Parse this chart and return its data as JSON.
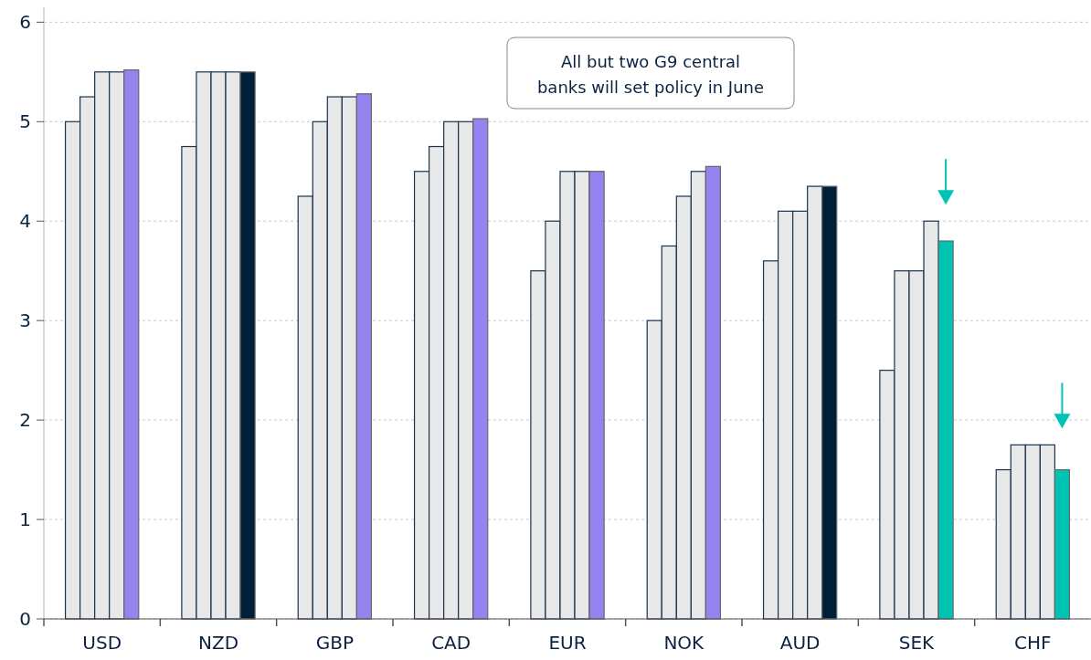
{
  "chart_data": {
    "type": "bar",
    "categories": [
      "USD",
      "NZD",
      "GBP",
      "CAD",
      "EUR",
      "NOK",
      "AUD",
      "SEK",
      "CHF"
    ],
    "series": [
      {
        "color": "#e8e8e8",
        "values": [
          5,
          4.75,
          4.25,
          4.5,
          3.5,
          3,
          3.6,
          2.5,
          1.5
        ]
      },
      {
        "color": "#e8e8e8",
        "values": [
          5.25,
          5.5,
          5,
          4.75,
          4,
          3.75,
          4.1,
          3.5,
          1.75
        ]
      },
      {
        "color": "#e8e8e8",
        "values": [
          5.5,
          5.5,
          5.25,
          5,
          4.5,
          4.25,
          4.1,
          3.5,
          1.75
        ]
      },
      {
        "color": "#e8e8e8",
        "values": [
          5.5,
          5.5,
          5.25,
          5,
          4.5,
          4.5,
          4.35,
          4,
          1.75
        ]
      },
      {
        "colors": [
          "#9583f0",
          "#001f3a",
          "#9583f0",
          "#9583f0",
          "#9583f0",
          "#9583f0",
          "#001f3a",
          "#00c4b3",
          "#00c4b3"
        ],
        "values": [
          5.52,
          5.5,
          5.28,
          5.03,
          4.5,
          4.55,
          4.35,
          3.8,
          1.5
        ]
      }
    ],
    "ylim": [
      0,
      6.15
    ],
    "yticks": [
      0,
      1,
      2,
      3,
      4,
      5,
      6
    ],
    "grid": "y",
    "annotations": [
      "All but two G9 central banks will set policy in June"
    ]
  }
}
